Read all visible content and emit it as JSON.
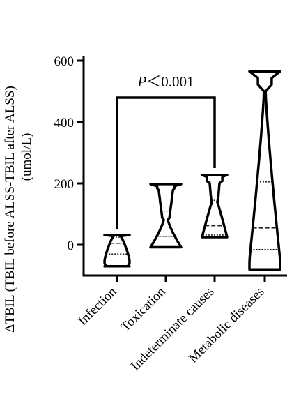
{
  "chart_data": {
    "type": "violin",
    "ylabel_line1": "ΔTBIL (TBIL before ALSS-TBIL after ALSS)",
    "ylabel_line2": "(umol/L)",
    "ylim": [
      -100,
      600
    ],
    "yticks": [
      0,
      200,
      400,
      600
    ],
    "categories": [
      "Infection",
      "Toxication",
      "Indeterminate causes",
      "Metabolic diseases"
    ],
    "violins": [
      {
        "category": "Infection",
        "min": -70,
        "max": 32,
        "median": 5,
        "q1": -30,
        "q3": 25
      },
      {
        "category": "Toxication",
        "min": -8,
        "max": 198,
        "median": 28,
        "q1": 28,
        "q3": 110
      },
      {
        "category": "Indeterminate causes",
        "min": 25,
        "max": 228,
        "median": 62,
        "q1": 32,
        "q3": 145
      },
      {
        "category": "Metabolic diseases",
        "min": -80,
        "max": 565,
        "median": 55,
        "q1": -15,
        "q3": 205
      }
    ],
    "comparison": {
      "from": "Infection",
      "to": "Indeterminate causes",
      "label_italic": "P",
      "label_rest": "＜0.001"
    }
  }
}
